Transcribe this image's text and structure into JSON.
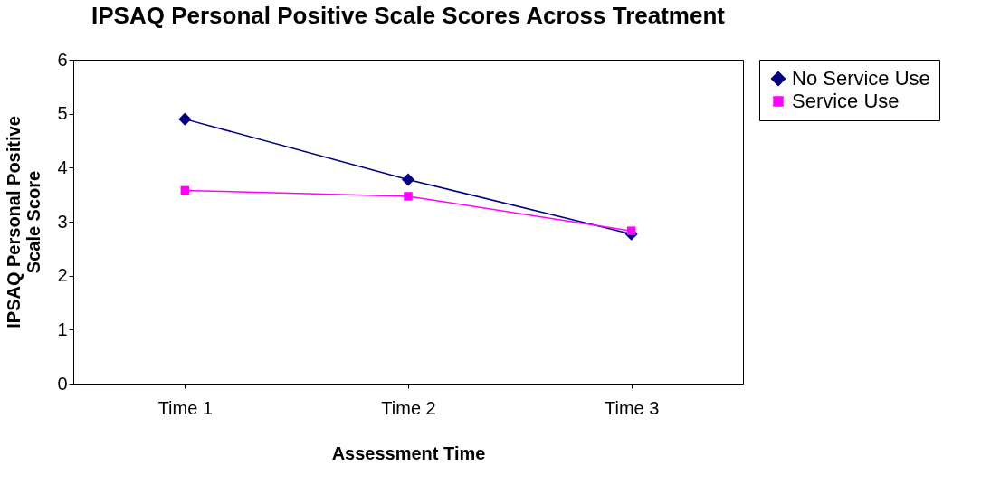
{
  "chart_data": {
    "type": "line",
    "title": "IPSAQ Personal Positive Scale Scores Across Treatment",
    "xlabel": "Assessment Time",
    "ylabel": "IPSAQ Personal Positive Scale Score",
    "categories": [
      "Time 1",
      "Time 2",
      "Time 3"
    ],
    "series": [
      {
        "name": "No Service Use",
        "color": "#000080",
        "marker": "diamond",
        "values": [
          4.9,
          3.78,
          2.77
        ]
      },
      {
        "name": "Service Use",
        "color": "#ff00ff",
        "marker": "square",
        "values": [
          3.58,
          3.47,
          2.83
        ]
      }
    ],
    "ylim": [
      0,
      6
    ],
    "yticks": [
      0,
      1,
      2,
      3,
      4,
      5,
      6
    ],
    "grid": false,
    "legend": "right"
  }
}
